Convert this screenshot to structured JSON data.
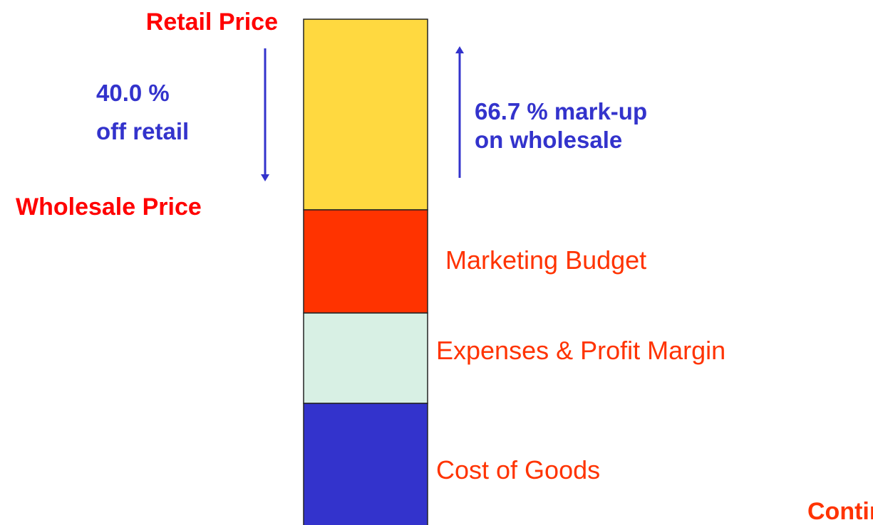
{
  "left": {
    "retail_price": "Retail Price",
    "discount_line1": "40.0 %",
    "discount_line2": "off retail",
    "wholesale_price": "Wholesale Price"
  },
  "right": {
    "markup_line1": "66.7 % mark-up",
    "markup_line2": "on wholesale"
  },
  "segments": [
    {
      "label": "Marketing Budget"
    },
    {
      "label": "Expenses & Profit Margin"
    },
    {
      "label": "Cost of Goods"
    }
  ],
  "footer": "Contin"
}
